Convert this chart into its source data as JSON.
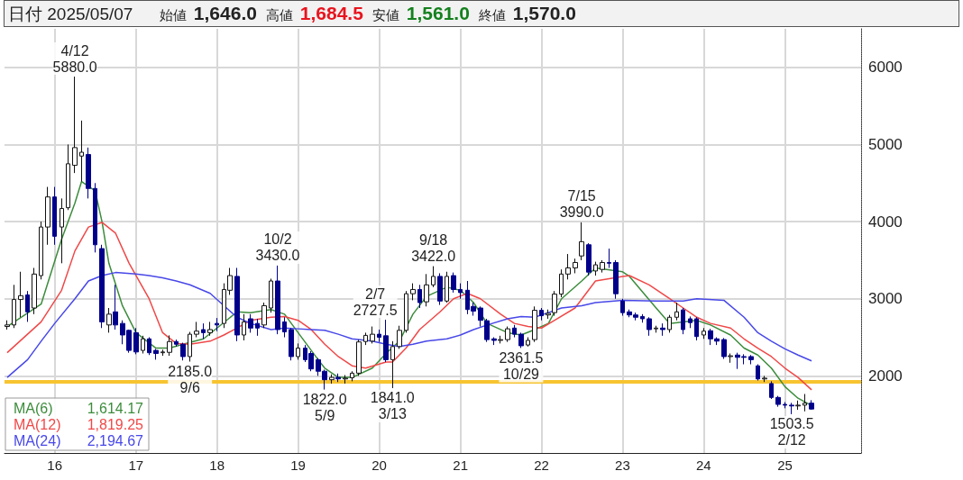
{
  "chart_data": {
    "type": "candlestick",
    "title": "日付 2025/05/07",
    "subtitle": "始値 1,646.0 高値 1,684.5 安値 1,561.0 終値 1,570.0",
    "x": [
      "2015-06",
      "2015-07",
      "2015-08",
      "2015-09",
      "2015-10",
      "2015-11",
      "2015-12",
      "2016-01",
      "2016-02",
      "2016-03",
      "2016-04",
      "2016-05",
      "2016-06",
      "2016-07",
      "2016-08",
      "2016-09",
      "2016-10",
      "2016-11",
      "2016-12",
      "2017-01",
      "2017-02",
      "2017-03",
      "2017-04",
      "2017-05",
      "2017-06",
      "2017-07",
      "2017-08",
      "2017-09",
      "2017-10",
      "2017-11",
      "2017-12",
      "2018-01",
      "2018-02",
      "2018-03",
      "2018-04",
      "2018-05",
      "2018-06",
      "2018-07",
      "2018-08",
      "2018-09",
      "2018-10",
      "2018-11",
      "2018-12",
      "2019-01",
      "2019-02",
      "2019-03",
      "2019-04",
      "2019-05",
      "2019-06",
      "2019-07",
      "2019-08",
      "2019-09",
      "2019-10",
      "2019-11",
      "2019-12",
      "2020-01",
      "2020-02",
      "2020-03",
      "2020-04",
      "2020-05",
      "2020-06",
      "2020-07",
      "2020-08",
      "2020-09",
      "2020-10",
      "2020-11",
      "2020-12",
      "2021-01",
      "2021-02",
      "2021-03",
      "2021-04",
      "2021-05",
      "2021-06",
      "2021-07",
      "2021-08",
      "2021-09",
      "2021-10",
      "2021-11",
      "2021-12",
      "2022-01",
      "2022-02",
      "2022-03",
      "2022-04",
      "2022-05",
      "2022-06",
      "2022-07",
      "2022-08",
      "2022-09",
      "2022-10",
      "2022-11",
      "2022-12",
      "2023-01",
      "2023-02",
      "2023-03",
      "2023-04",
      "2023-05",
      "2023-06",
      "2023-07",
      "2023-08",
      "2023-09",
      "2023-10",
      "2023-11",
      "2023-12",
      "2024-01",
      "2024-02",
      "2024-03",
      "2024-04",
      "2024-05",
      "2024-06",
      "2024-07",
      "2024-08",
      "2024-09",
      "2024-10",
      "2024-11",
      "2024-12",
      "2025-01",
      "2025-02",
      "2025-03",
      "2025-04",
      "2025-05"
    ],
    "ohlc": [
      [
        2640,
        2720,
        2600,
        2660
      ],
      [
        2660,
        3180,
        2620,
        2990
      ],
      [
        2990,
        3350,
        2760,
        3040
      ],
      [
        3050,
        3100,
        2700,
        2830
      ],
      [
        2880,
        3400,
        2800,
        3320
      ],
      [
        3300,
        4000,
        3250,
        3930
      ],
      [
        3930,
        4450,
        3700,
        4320
      ],
      [
        4320,
        4450,
        3700,
        3810
      ],
      [
        3930,
        4300,
        3460,
        4170
      ],
      [
        4180,
        5000,
        4150,
        4750
      ],
      [
        4730,
        5880,
        4630,
        4960
      ],
      [
        4850,
        5310,
        4520,
        4900
      ],
      [
        4870,
        4960,
        4300,
        4430
      ],
      [
        4430,
        4500,
        3600,
        3700
      ],
      [
        3650,
        3700,
        2620,
        2700
      ],
      [
        2660,
        2880,
        2560,
        2800
      ],
      [
        2830,
        3180,
        2600,
        2660
      ],
      [
        2680,
        2720,
        2410,
        2530
      ],
      [
        2590,
        2600,
        2300,
        2330
      ],
      [
        2560,
        2620,
        2280,
        2310
      ],
      [
        2330,
        2520,
        2290,
        2480
      ],
      [
        2480,
        2500,
        2270,
        2300
      ],
      [
        2330,
        2350,
        2210,
        2290
      ],
      [
        2300,
        2340,
        2260,
        2310
      ],
      [
        2305,
        2525,
        2260,
        2445
      ],
      [
        2445,
        2470,
        2380,
        2410
      ],
      [
        2410,
        2430,
        2200,
        2250
      ],
      [
        2250,
        2570,
        2185,
        2540
      ],
      [
        2540,
        2700,
        2500,
        2580
      ],
      [
        2600,
        2680,
        2480,
        2560
      ],
      [
        2560,
        2700,
        2520,
        2600
      ],
      [
        2680,
        2750,
        2580,
        2660
      ],
      [
        2680,
        3200,
        2620,
        3120
      ],
      [
        3110,
        3400,
        3050,
        3300
      ],
      [
        3290,
        3400,
        2450,
        2530
      ],
      [
        2530,
        2800,
        2460,
        2700
      ],
      [
        2740,
        2800,
        2560,
        2620
      ],
      [
        2680,
        2740,
        2520,
        2620
      ],
      [
        2660,
        2950,
        2620,
        2910
      ],
      [
        2880,
        3260,
        2820,
        3230
      ],
      [
        3230,
        3430,
        2540,
        2600
      ],
      [
        2700,
        2760,
        2500,
        2570
      ],
      [
        2600,
        2620,
        2200,
        2250
      ],
      [
        2250,
        2420,
        2210,
        2360
      ],
      [
        2360,
        2400,
        2180,
        2210
      ],
      [
        2290,
        2320,
        2060,
        2090
      ],
      [
        2210,
        2230,
        2000,
        2060
      ],
      [
        2060,
        2080,
        1822,
        1950
      ],
      [
        1950,
        2020,
        1900,
        1980
      ],
      [
        1980,
        2030,
        1920,
        1960
      ],
      [
        1960,
        2010,
        1900,
        1970
      ],
      [
        1975,
        2060,
        1930,
        2035
      ],
      [
        2035,
        2470,
        2000,
        2440
      ],
      [
        2445,
        2560,
        2400,
        2525
      ],
      [
        2450,
        2640,
        2420,
        2540
      ],
      [
        2540,
        2600,
        2440,
        2500
      ],
      [
        2520,
        2727.5,
        2180,
        2210
      ],
      [
        2210,
        2450,
        1841,
        2380
      ],
      [
        2380,
        2650,
        2350,
        2590
      ],
      [
        2590,
        3100,
        2560,
        3065
      ],
      [
        3065,
        3200,
        2980,
        3120
      ],
      [
        3120,
        3180,
        2880,
        2950
      ],
      [
        2960,
        3320,
        2900,
        3180
      ],
      [
        3180,
        3422,
        3150,
        3290
      ],
      [
        3290,
        3330,
        2920,
        2970
      ],
      [
        2970,
        3350,
        2950,
        3290
      ],
      [
        3300,
        3340,
        3080,
        3120
      ],
      [
        3120,
        3200,
        3000,
        3080
      ],
      [
        3110,
        3230,
        2800,
        2860
      ],
      [
        2900,
        2950,
        2780,
        2840
      ],
      [
        2880,
        2900,
        2640,
        2720
      ],
      [
        2715,
        2740,
        2440,
        2470
      ],
      [
        2480,
        2500,
        2400,
        2460
      ],
      [
        2460,
        2520,
        2420,
        2470
      ],
      [
        2470,
        2640,
        2440,
        2610
      ],
      [
        2620,
        2660,
        2500,
        2540
      ],
      [
        2540,
        2560,
        2361.5,
        2390
      ],
      [
        2400,
        2500,
        2380,
        2460
      ],
      [
        2470,
        2900,
        2440,
        2850
      ],
      [
        2850,
        2880,
        2720,
        2780
      ],
      [
        2790,
        2860,
        2740,
        2810
      ],
      [
        2820,
        3100,
        2780,
        3060
      ],
      [
        3060,
        3380,
        3020,
        3320
      ],
      [
        3320,
        3580,
        3250,
        3400
      ],
      [
        3400,
        3520,
        3330,
        3470
      ],
      [
        3555,
        3990,
        3500,
        3740
      ],
      [
        3700,
        3720,
        3300,
        3345
      ],
      [
        3360,
        3480,
        3300,
        3440
      ],
      [
        3380,
        3500,
        3340,
        3470
      ],
      [
        3470,
        3650,
        3400,
        3460
      ],
      [
        3470,
        3500,
        3000,
        3065
      ],
      [
        2970,
        3000,
        2780,
        2820
      ],
      [
        2830,
        2860,
        2760,
        2790
      ],
      [
        2790,
        2820,
        2720,
        2760
      ],
      [
        2770,
        2800,
        2690,
        2740
      ],
      [
        2740,
        2760,
        2520,
        2600
      ],
      [
        2610,
        2650,
        2560,
        2620
      ],
      [
        2620,
        2680,
        2520,
        2600
      ],
      [
        2600,
        2790,
        2560,
        2760
      ],
      [
        2760,
        2950,
        2720,
        2830
      ],
      [
        2855,
        2880,
        2540,
        2600
      ],
      [
        2740,
        2770,
        2620,
        2690
      ],
      [
        2740,
        2760,
        2460,
        2510
      ],
      [
        2530,
        2620,
        2480,
        2580
      ],
      [
        2585,
        2610,
        2400,
        2480
      ],
      [
        2480,
        2500,
        2400,
        2450
      ],
      [
        2470,
        2490,
        2220,
        2250
      ],
      [
        2250,
        2290,
        2170,
        2260
      ],
      [
        2270,
        2300,
        2090,
        2240
      ],
      [
        2250,
        2280,
        2150,
        2240
      ],
      [
        2250,
        2270,
        2150,
        2210
      ],
      [
        2130,
        2150,
        1940,
        1960
      ],
      [
        1960,
        2000,
        1920,
        1970
      ],
      [
        1900,
        1930,
        1700,
        1720
      ],
      [
        1720,
        1740,
        1600,
        1630
      ],
      [
        1630,
        1660,
        1580,
        1620
      ],
      [
        1620,
        1650,
        1503.5,
        1610
      ],
      [
        1610,
        1680,
        1560,
        1620
      ],
      [
        1620,
        1765,
        1540,
        1646
      ],
      [
        1646,
        1684.5,
        1561,
        1570
      ]
    ],
    "colors": [
      "#ffffff",
      "#ffffff",
      "#ffffff",
      "#00008b",
      "#ffffff",
      "#ffffff",
      "#ffffff",
      "#00008b",
      "#ffffff",
      "#ffffff",
      "#ffffff",
      "#ffffff",
      "#00008b",
      "#00008b",
      "#00008b",
      "#ffffff",
      "#00008b",
      "#00008b",
      "#00008b",
      "#00008b",
      "#ffffff",
      "#00008b",
      "#00008b",
      "#ffffff",
      "#ffffff",
      "#00008b",
      "#00008b",
      "#ffffff",
      "#ffffff",
      "#00008b",
      "#ffffff",
      "#00008b",
      "#ffffff",
      "#ffffff",
      "#00008b",
      "#ffffff",
      "#00008b",
      "#00008b",
      "#ffffff",
      "#ffffff",
      "#00008b",
      "#00008b",
      "#00008b",
      "#ffffff",
      "#00008b",
      "#00008b",
      "#00008b",
      "#00008b",
      "#ffffff",
      "#00008b",
      "#ffffff",
      "#ffffff",
      "#ffffff",
      "#ffffff",
      "#ffffff",
      "#00008b",
      "#00008b",
      "#ffffff",
      "#ffffff",
      "#ffffff",
      "#ffffff",
      "#00008b",
      "#ffffff",
      "#ffffff",
      "#00008b",
      "#ffffff",
      "#00008b",
      "#00008b",
      "#00008b",
      "#00008b",
      "#00008b",
      "#00008b",
      "#00008b",
      "#ffffff",
      "#ffffff",
      "#00008b",
      "#00008b",
      "#ffffff",
      "#ffffff",
      "#00008b",
      "#ffffff",
      "#ffffff",
      "#ffffff",
      "#ffffff",
      "#ffffff",
      "#ffffff",
      "#00008b",
      "#ffffff",
      "#ffffff",
      "#00008b",
      "#00008b",
      "#00008b",
      "#00008b",
      "#00008b",
      "#00008b",
      "#00008b",
      "#ffffff",
      "#00008b",
      "#ffffff",
      "#ffffff",
      "#00008b",
      "#00008b",
      "#00008b",
      "#ffffff",
      "#00008b",
      "#00008b",
      "#00008b",
      "#ffffff",
      "#00008b",
      "#00008b",
      "#00008b",
      "#00008b",
      "#ffffff",
      "#00008b",
      "#00008b",
      "#00008b",
      "#00008b",
      "#ffffff",
      "#ffffff",
      "#00008b"
    ],
    "series": [
      {
        "name": "MA(6)",
        "type": "line",
        "color": "#3c8c3c",
        "x": [
          "2015-06",
          "2015-11",
          "2016-02",
          "2016-04",
          "2016-05",
          "2016-07",
          "2016-08",
          "2016-09",
          "2016-11",
          "2017-01",
          "2017-04",
          "2017-06",
          "2017-08",
          "2017-11",
          "2018-01",
          "2018-04",
          "2018-06",
          "2018-09",
          "2018-11",
          "2019-01",
          "2019-04",
          "2019-05",
          "2019-07",
          "2019-09",
          "2019-12",
          "2020-02",
          "2020-04",
          "2020-06",
          "2020-08",
          "2020-11",
          "2021-01",
          "2021-03",
          "2021-05",
          "2021-08",
          "2021-10",
          "2021-12",
          "2022-02",
          "2022-04",
          "2022-07",
          "2022-09",
          "2023-01",
          "2023-02",
          "2023-06",
          "2023-08",
          "2023-10",
          "2023-12",
          "2024-02",
          "2024-05",
          "2024-07",
          "2024-09",
          "2024-11",
          "2025-01",
          "2025-03",
          "2025-05"
        ],
        "values": [
          2640,
          2930,
          3770,
          4240,
          4520,
          4400,
          4000,
          3460,
          2910,
          2560,
          2360,
          2360,
          2410,
          2480,
          2620,
          2830,
          2820,
          2860,
          2800,
          2560,
          2210,
          2100,
          1980,
          1980,
          2100,
          2290,
          2450,
          2800,
          3030,
          3150,
          3110,
          2950,
          2680,
          2560,
          2530,
          2600,
          2680,
          3000,
          3230,
          3400,
          3350,
          3290,
          2880,
          2680,
          2700,
          2720,
          2660,
          2530,
          2360,
          2270,
          2100,
          1860,
          1710,
          1614.17
        ]
      },
      {
        "name": "MA(12)",
        "type": "line",
        "color": "#f04848",
        "x": [
          "2015-06",
          "2015-11",
          "2016-02",
          "2016-04",
          "2016-06",
          "2016-08",
          "2016-10",
          "2016-12",
          "2017-03",
          "2017-05",
          "2017-07",
          "2017-09",
          "2017-12",
          "2018-02",
          "2018-04",
          "2018-06",
          "2018-09",
          "2018-11",
          "2019-01",
          "2019-03",
          "2019-05",
          "2019-07",
          "2019-09",
          "2019-11",
          "2020-02",
          "2020-03",
          "2020-05",
          "2020-07",
          "2020-10",
          "2020-12",
          "2021-02",
          "2021-04",
          "2021-07",
          "2021-09",
          "2021-11",
          "2022-01",
          "2022-03",
          "2022-06",
          "2022-09",
          "2023-01",
          "2023-02",
          "2023-05",
          "2023-08",
          "2023-10",
          "2023-12",
          "2024-02",
          "2024-05",
          "2024-07",
          "2024-09",
          "2024-11",
          "2025-01",
          "2025-03",
          "2025-05"
        ],
        "values": [
          2300,
          2700,
          3110,
          3620,
          3930,
          3990,
          3850,
          3460,
          3000,
          2560,
          2420,
          2410,
          2450,
          2530,
          2620,
          2720,
          2760,
          2770,
          2720,
          2600,
          2410,
          2250,
          2130,
          2100,
          2180,
          2180,
          2360,
          2600,
          2830,
          3000,
          3070,
          3000,
          2800,
          2680,
          2640,
          2620,
          2720,
          2880,
          3230,
          3290,
          3300,
          3180,
          3000,
          2880,
          2760,
          2680,
          2620,
          2480,
          2360,
          2250,
          2100,
          1980,
          1819.25
        ]
      },
      {
        "name": "MA(24)",
        "type": "line",
        "color": "#4848e8",
        "x": [
          "2015-06",
          "2015-09",
          "2015-11",
          "2016-01",
          "2016-04",
          "2016-06",
          "2016-08",
          "2016-10",
          "2017-01",
          "2017-03",
          "2017-05",
          "2017-07",
          "2017-09",
          "2017-12",
          "2018-02",
          "2018-04",
          "2018-06",
          "2018-09",
          "2018-11",
          "2019-01",
          "2019-03",
          "2019-05",
          "2019-07",
          "2019-09",
          "2019-12",
          "2020-02",
          "2020-04",
          "2020-06",
          "2020-08",
          "2020-11",
          "2021-01",
          "2021-03",
          "2021-05",
          "2021-08",
          "2021-10",
          "2021-12",
          "2022-02",
          "2022-04",
          "2022-07",
          "2022-09",
          "2023-01",
          "2023-06",
          "2023-10",
          "2023-12",
          "2024-04",
          "2024-07",
          "2024-09",
          "2024-11",
          "2025-01",
          "2025-03",
          "2025-05"
        ],
        "values": [
          1980,
          2210,
          2450,
          2680,
          3000,
          3230,
          3300,
          3340,
          3320,
          3300,
          3270,
          3230,
          3180,
          3070,
          2910,
          2760,
          2680,
          2600,
          2620,
          2610,
          2600,
          2590,
          2540,
          2480,
          2450,
          2410,
          2380,
          2410,
          2450,
          2480,
          2530,
          2600,
          2660,
          2740,
          2770,
          2760,
          2820,
          2880,
          2910,
          2950,
          2980,
          2970,
          2970,
          3000,
          2980,
          2760,
          2560,
          2450,
          2350,
          2270,
          2194.67
        ]
      }
    ],
    "annotations": [
      {
        "text": "4/12\n5880.0",
        "x": "2016-04-12",
        "y": 5880
      },
      {
        "text": "2185.0\n9/6",
        "x": "2017-09-06",
        "y": 2185
      },
      {
        "text": "10/2\n3430.0",
        "x": "2018-10-02",
        "y": 3430
      },
      {
        "text": "1822.0\n5/9",
        "x": "2019-05-09",
        "y": 1822
      },
      {
        "text": "2/7\n2727.5",
        "x": "2020-02-07",
        "y": 2727.5
      },
      {
        "text": "1841.0\n3/13",
        "x": "2020-03-13",
        "y": 1841
      },
      {
        "text": "9/18\n3422.0",
        "x": "2020-09-18",
        "y": 3422
      },
      {
        "text": "2361.5\n10/29",
        "x": "2021-10-29",
        "y": 2361.5
      },
      {
        "text": "7/15\n3990.0",
        "x": "2022-07-15",
        "y": 3990
      },
      {
        "text": "1503.5\n2/12",
        "x": "2025-02-12",
        "y": 1503.5
      },
      "1,614.17",
      "1,819.25",
      "2,194.67"
    ],
    "ref_lines": [
      {
        "axis": "y",
        "value": 1920,
        "color": "#f7c431"
      }
    ],
    "xlim": [
      "2015-05-20",
      "2025-12-10"
    ],
    "xticks": [
      {
        "value": "2016-01",
        "label": "16"
      },
      {
        "value": "2017-01",
        "label": "17"
      },
      {
        "value": "2018-01",
        "label": "18"
      },
      {
        "value": "2019-01",
        "label": "19"
      },
      {
        "value": "2020-01",
        "label": "20"
      },
      {
        "value": "2021-01",
        "label": "21"
      },
      {
        "value": "2022-01",
        "label": "22"
      },
      {
        "value": "2023-01",
        "label": "23"
      },
      {
        "value": "2024-01",
        "label": "24"
      },
      {
        "value": "2025-01",
        "label": "25"
      }
    ],
    "ylim": [
      1000,
      6500
    ],
    "yticks": [
      2000,
      3000,
      4000,
      5000,
      6000
    ],
    "grid": true,
    "legend": "bottom left"
  }
}
